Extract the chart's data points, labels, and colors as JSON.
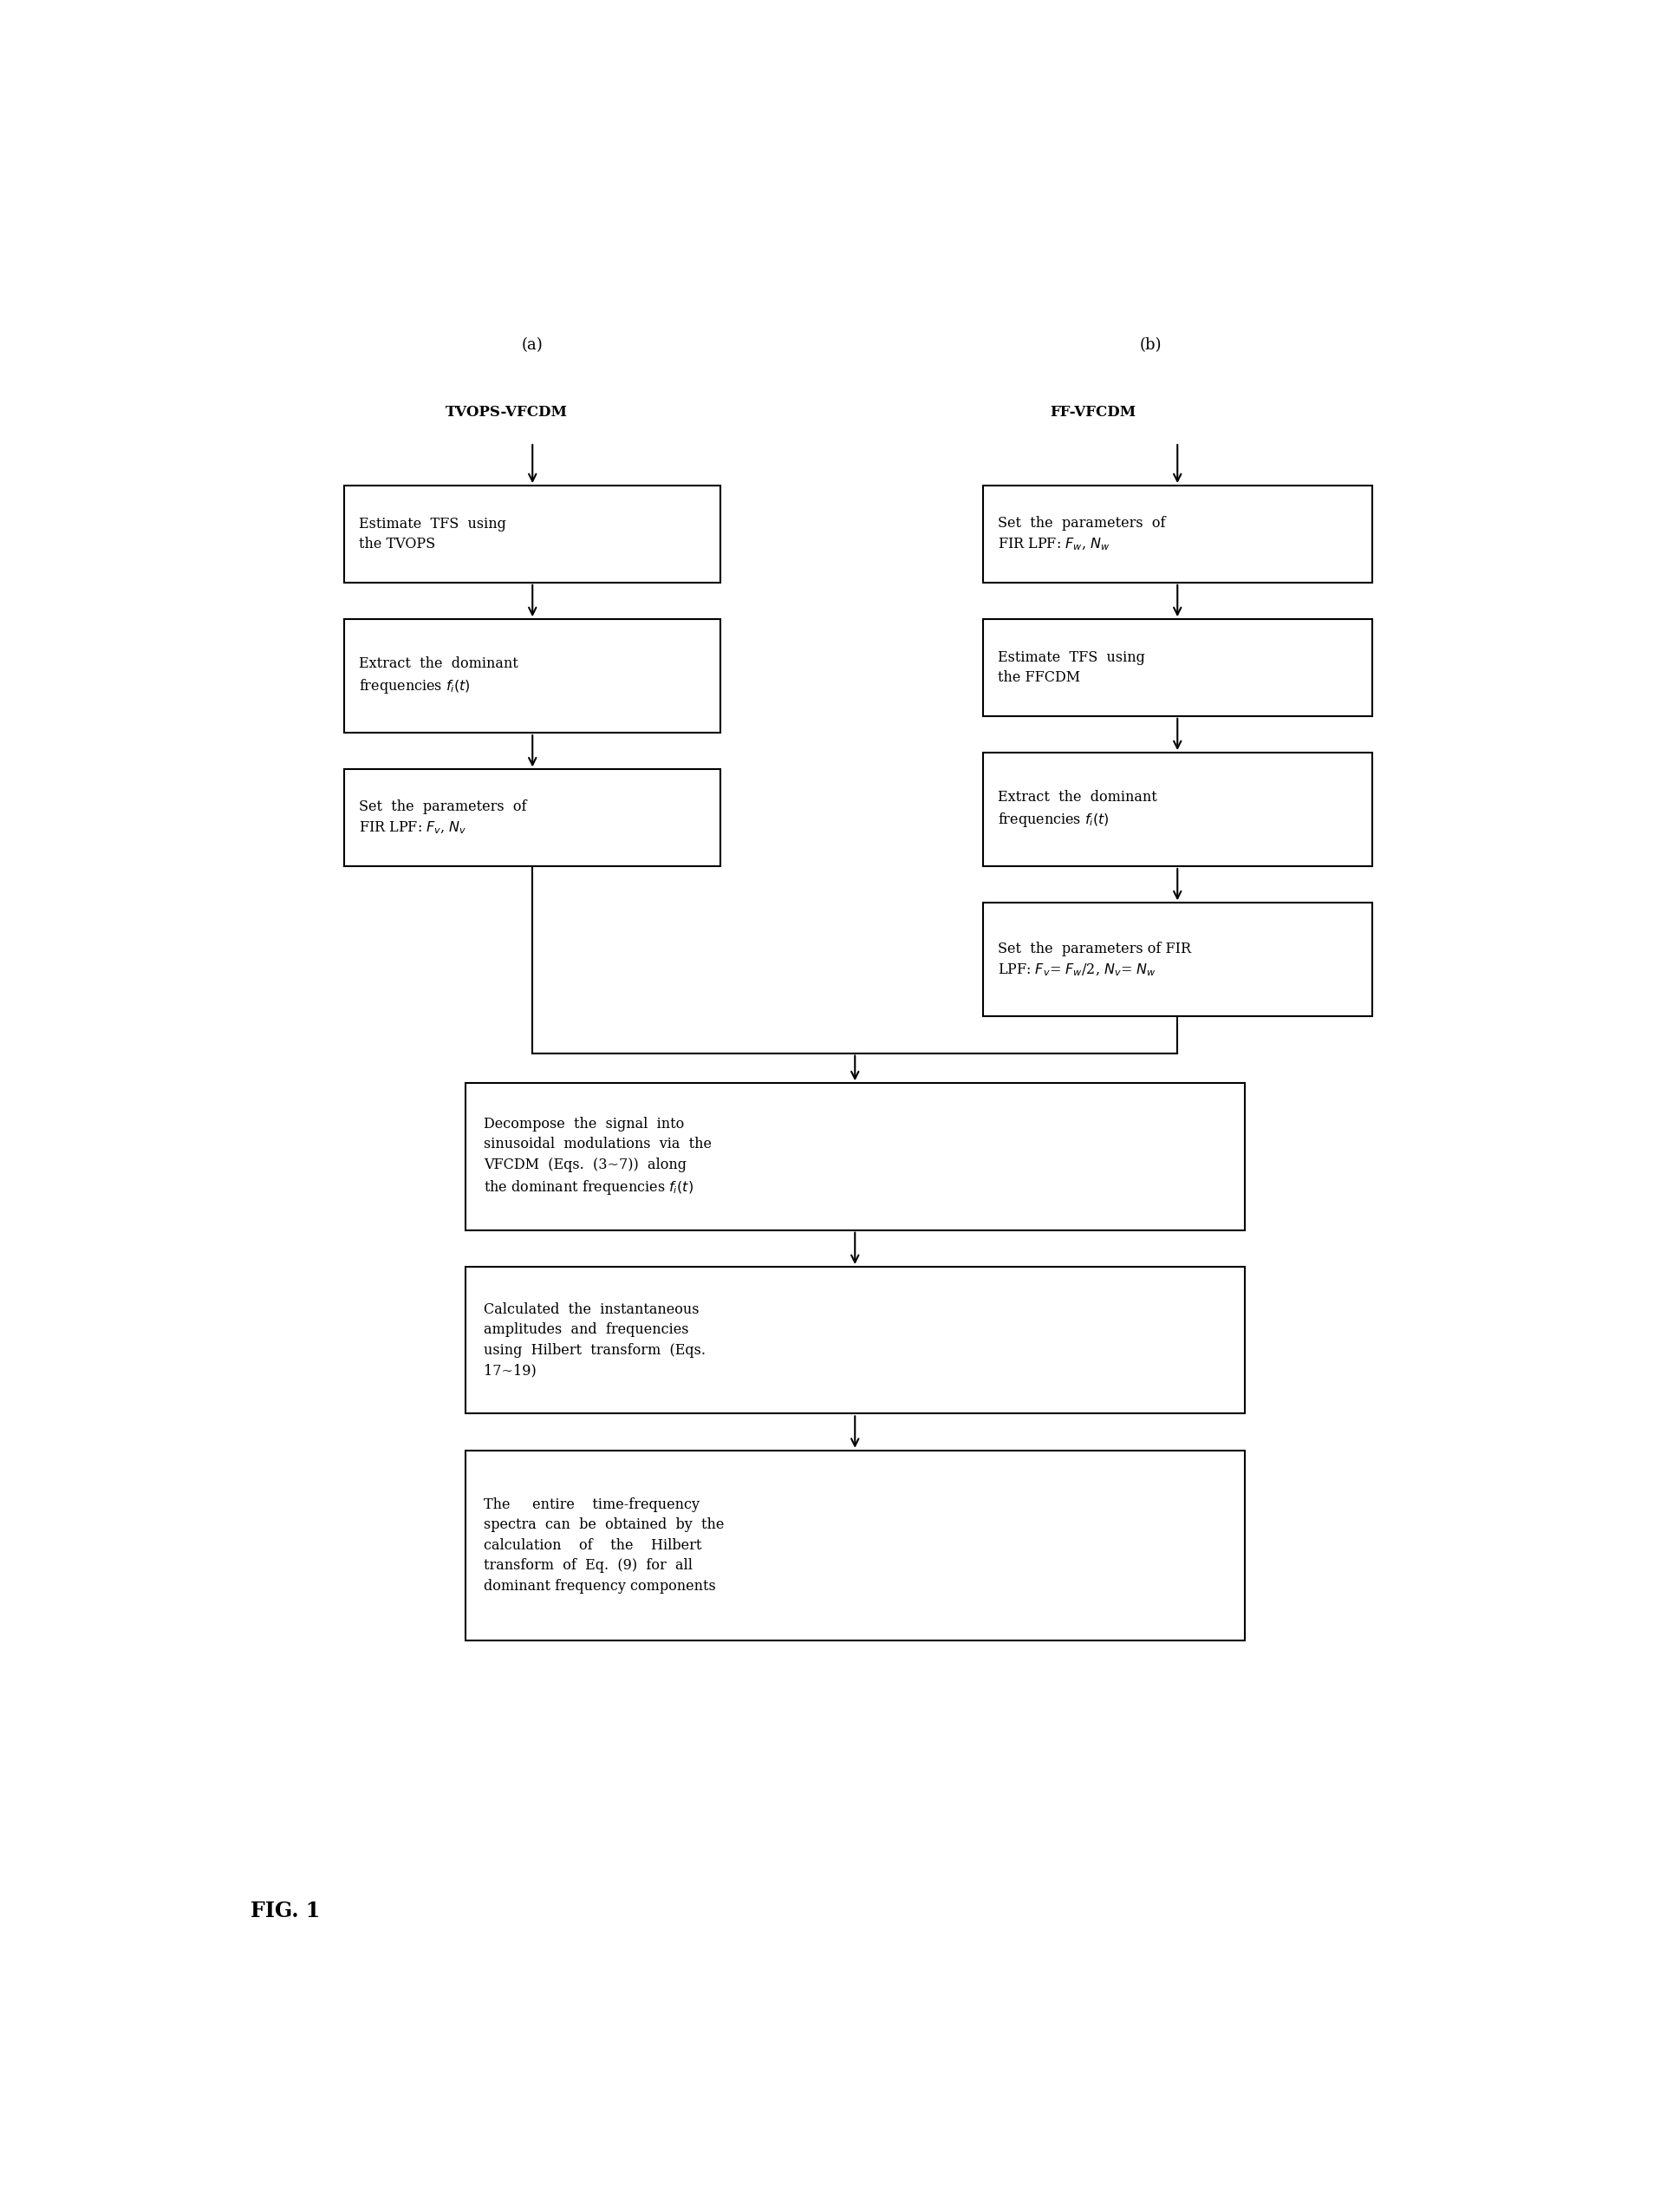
{
  "fig_label_a": "(a)",
  "fig_label_b": "(b)",
  "title_a": "TVOPS-VFCDM",
  "title_b": "FF-VFCDM",
  "fig_label": "FIG. 1",
  "bg_color": "#ffffff",
  "box_color": "#ffffff",
  "border_color": "#000000",
  "text_color": "#000000",
  "arrow_color": "#000000"
}
